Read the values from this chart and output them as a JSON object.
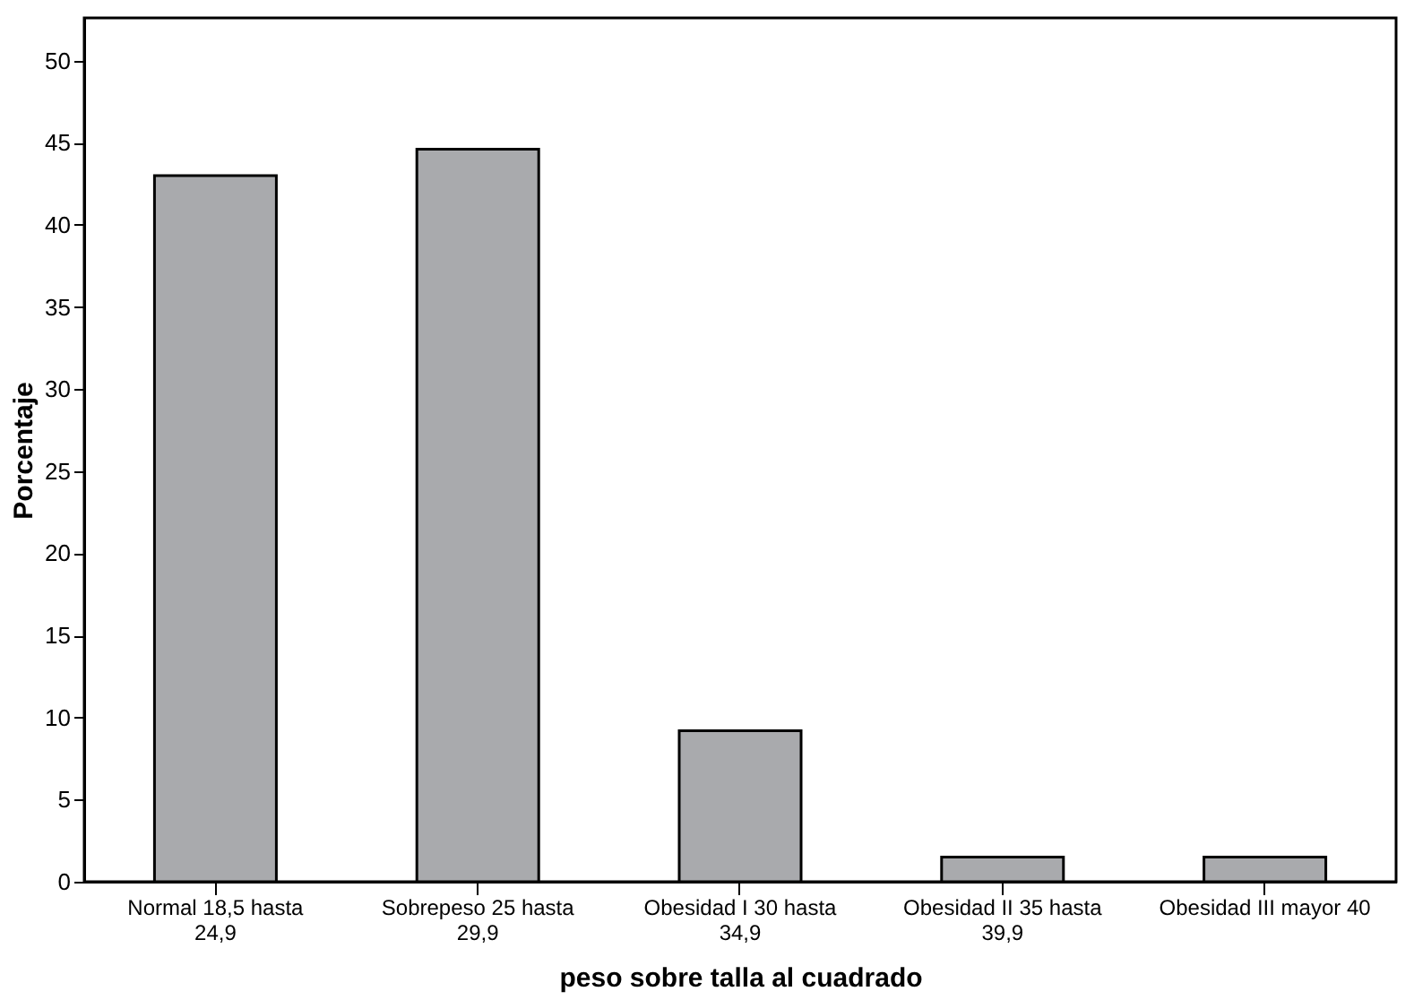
{
  "chart_data": {
    "type": "bar",
    "xlabel": "peso sobre  talla al cuadrado",
    "ylabel": "Porcentaje",
    "categories": [
      "Normal 18,5 hasta\n24,9",
      "Sobrepeso 25 hasta\n29,9",
      "Obesidad I 30 hasta\n34,9",
      "Obesidad II 35 hasta\n39,9",
      "Obesidad III mayor 40"
    ],
    "values": [
      43.0,
      44.6,
      9.2,
      1.5,
      1.5
    ],
    "color": "#a9aaad",
    "ylim": [
      0,
      52.6
    ],
    "yticks": [
      0,
      5,
      10,
      15,
      20,
      25,
      30,
      35,
      40,
      45,
      50
    ],
    "grid": false
  }
}
